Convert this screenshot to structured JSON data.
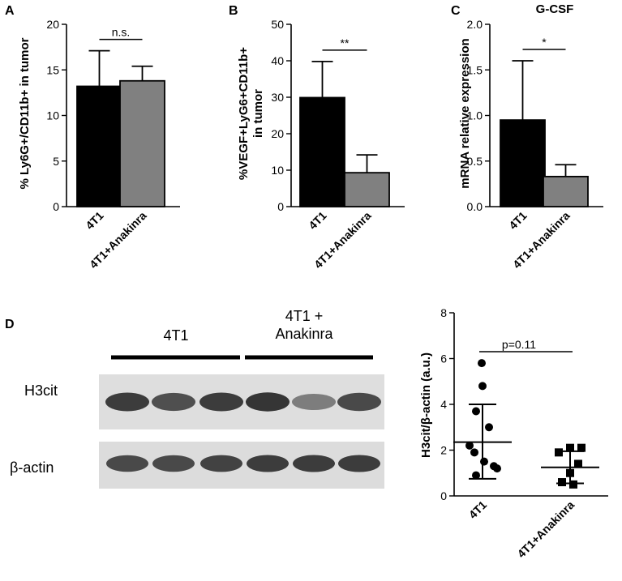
{
  "panels": {
    "A": "A",
    "B": "B",
    "C": "C",
    "D": "D"
  },
  "blot": {
    "group1": "4T1",
    "group2_line1": "4T1 +",
    "group2_line2": "Anakinra",
    "row1": "H3cit",
    "row2": "β-actin",
    "h3cit_intensity": [
      0.85,
      0.7,
      0.85,
      0.9,
      0.35,
      0.75
    ],
    "actin_intensity": [
      0.75,
      0.75,
      0.8,
      0.85,
      0.85,
      0.85
    ]
  },
  "chart_data": [
    {
      "type": "bar",
      "panel": "A",
      "categories": [
        "4T1",
        "4T1+Anakinra"
      ],
      "values": [
        13.2,
        13.8
      ],
      "errors": [
        3.9,
        1.6
      ],
      "colors": [
        "#000000",
        "#808080"
      ],
      "ylabel": "% Ly6G+/CD11b+ in tumor",
      "ylim": [
        0,
        20
      ],
      "yticks": [
        "0",
        "5",
        "10",
        "15",
        "20"
      ],
      "significance": "n.s."
    },
    {
      "type": "bar",
      "panel": "B",
      "categories": [
        "4T1",
        "4T1+Anakinra"
      ],
      "values": [
        29.9,
        9.3
      ],
      "errors": [
        9.9,
        4.9
      ],
      "colors": [
        "#000000",
        "#808080"
      ],
      "ylabel_line1": "%VEGF+LyG6+CD11b+",
      "ylabel_line2": "in tumor",
      "ylim": [
        0,
        50
      ],
      "yticks": [
        "0",
        "10",
        "20",
        "30",
        "40",
        "50"
      ],
      "significance": "**"
    },
    {
      "type": "bar",
      "panel": "C",
      "title": "G-CSF",
      "categories": [
        "4T1",
        "4T1+Anakinra"
      ],
      "values": [
        0.95,
        0.33
      ],
      "errors": [
        0.65,
        0.13
      ],
      "colors": [
        "#000000",
        "#808080"
      ],
      "ylabel": "mRNA relative expression",
      "ylim": [
        0,
        2.0
      ],
      "yticks": [
        "0.0",
        "0.5",
        "1.0",
        "1.5",
        "2.0"
      ],
      "significance": "*"
    },
    {
      "type": "scatter",
      "panel": "D",
      "categories": [
        "4T1",
        "4T1+Anakinra"
      ],
      "ylabel": "H3cit/β-actin (a.u.)",
      "ylim": [
        0,
        8
      ],
      "yticks": [
        "0",
        "2",
        "4",
        "6",
        "8"
      ],
      "annotation": "p=0.11",
      "groups": [
        {
          "name": "4T1",
          "marker": "circle",
          "points": [
            5.8,
            4.8,
            3.7,
            3.0,
            2.2,
            1.9,
            1.5,
            1.3,
            1.2,
            0.9
          ],
          "mean": 2.35,
          "sd_low": 0.75,
          "sd_high": 4.0
        },
        {
          "name": "4T1+Anakinra",
          "marker": "square",
          "points": [
            2.1,
            2.1,
            1.9,
            1.4,
            1.0,
            0.6,
            0.5
          ],
          "mean": 1.25,
          "sd_low": 0.55,
          "sd_high": 1.95
        }
      ]
    }
  ]
}
